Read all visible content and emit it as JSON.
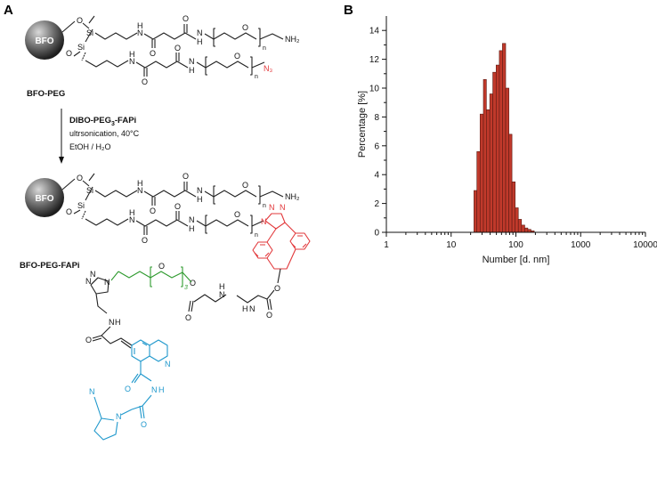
{
  "panel_a": {
    "label": "A",
    "particle_label": "BFO",
    "si_label": "Si",
    "o_label": "O",
    "n_label": "n",
    "nh_label": "N",
    "h_label": "H",
    "nh2_label": "NH₂",
    "n3_label": "N₃",
    "top_compound": "BFO-PEG",
    "reagent_line1_pre": "DIBO-PEG",
    "reagent_line1_sub": "3",
    "reagent_line1_post": "-FAPi",
    "reagent_line2": "ultrsonication, 40°C",
    "reagent_line3": "EtOH / H₂O",
    "bottom_compound": "BFO-PEG-FAPi",
    "peg_repeat": "3",
    "triazole_n": "N",
    "colors": {
      "azide_and_dibo": "#e2383b",
      "peg3_linker": "#2e9a2e",
      "fapi": "#1f98cc",
      "particle": "#555555"
    }
  },
  "panel_b": {
    "label": "B"
  },
  "chart_data": {
    "type": "bar",
    "title": "",
    "xlabel": "Number [d. nm]",
    "ylabel": "Percentage [%]",
    "x_scale": "log",
    "xlim": [
      1,
      10000
    ],
    "ylim": [
      0,
      15
    ],
    "x_ticks": [
      1,
      10,
      100,
      1000,
      10000
    ],
    "x_tick_labels": [
      "1",
      "10",
      "100",
      "1000",
      "10000"
    ],
    "y_ticks": [
      0,
      2,
      4,
      6,
      8,
      10,
      12,
      14
    ],
    "y_tick_labels": [
      "0",
      "2",
      "4",
      "6",
      "8",
      "10",
      "12",
      "14"
    ],
    "bar_color": "#c0392b",
    "bins": [
      {
        "x_low": 22.5,
        "x_high": 25.0,
        "value": 2.9
      },
      {
        "x_low": 25.0,
        "x_high": 28.0,
        "value": 5.6
      },
      {
        "x_low": 28.0,
        "x_high": 31.5,
        "value": 8.2
      },
      {
        "x_low": 31.5,
        "x_high": 35.0,
        "value": 10.6
      },
      {
        "x_low": 35.0,
        "x_high": 39.5,
        "value": 8.5
      },
      {
        "x_low": 39.5,
        "x_high": 44.0,
        "value": 9.6
      },
      {
        "x_low": 44.0,
        "x_high": 49.5,
        "value": 11.1
      },
      {
        "x_low": 49.5,
        "x_high": 55.5,
        "value": 11.6
      },
      {
        "x_low": 55.5,
        "x_high": 62.0,
        "value": 12.6
      },
      {
        "x_low": 62.0,
        "x_high": 69.5,
        "value": 13.1
      },
      {
        "x_low": 69.5,
        "x_high": 78.0,
        "value": 10.0
      },
      {
        "x_low": 78.0,
        "x_high": 87.0,
        "value": 6.8
      },
      {
        "x_low": 87.0,
        "x_high": 97.5,
        "value": 3.5
      },
      {
        "x_low": 97.5,
        "x_high": 109.0,
        "value": 1.7
      },
      {
        "x_low": 109.0,
        "x_high": 122.0,
        "value": 0.9
      },
      {
        "x_low": 122.0,
        "x_high": 137.0,
        "value": 0.5
      },
      {
        "x_low": 137.0,
        "x_high": 153.0,
        "value": 0.3
      },
      {
        "x_low": 153.0,
        "x_high": 171.0,
        "value": 0.2
      },
      {
        "x_low": 171.0,
        "x_high": 192.0,
        "value": 0.1
      }
    ]
  }
}
